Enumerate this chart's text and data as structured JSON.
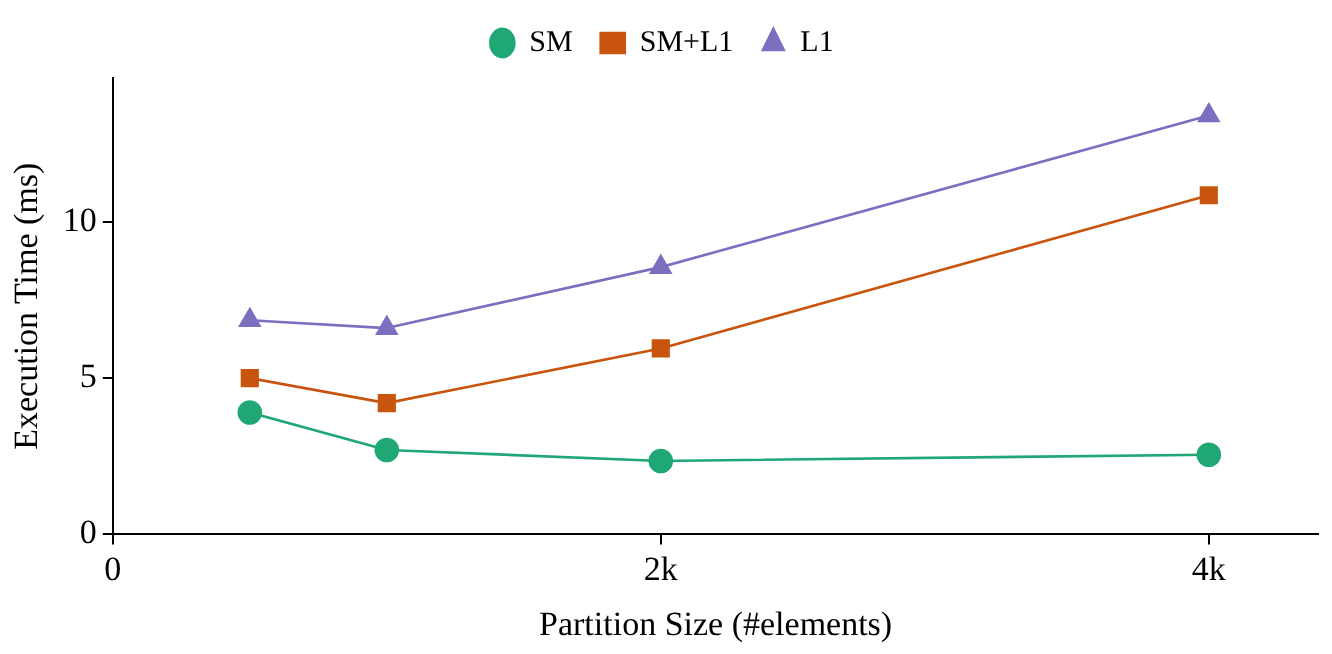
{
  "chart_data": {
    "type": "line",
    "xlabel": "Partition Size (#elements)",
    "ylabel": "Execution Time (ms)",
    "x": [
      500,
      1000,
      2000,
      4000
    ],
    "series": [
      {
        "name": "SM",
        "color": "#1fa774",
        "marker": "circle",
        "values": [
          3.9,
          2.7,
          2.35,
          2.55
        ]
      },
      {
        "name": "SM+L1",
        "color": "#c8540e",
        "marker": "square",
        "values": [
          5.0,
          4.2,
          5.95,
          10.85
        ]
      },
      {
        "name": "L1",
        "color": "#7b6fc0",
        "marker": "triangle",
        "values": [
          6.85,
          6.6,
          8.55,
          13.4
        ]
      }
    ],
    "xlim": [
      0,
      4400
    ],
    "xticks": [
      0,
      {
        "value": 2000,
        "label": "2k"
      },
      {
        "value": 4000,
        "label": "4k"
      }
    ],
    "ylim": [
      0,
      14.6
    ],
    "yticks": [
      0,
      5,
      10
    ],
    "grid": false,
    "legend": "top"
  }
}
